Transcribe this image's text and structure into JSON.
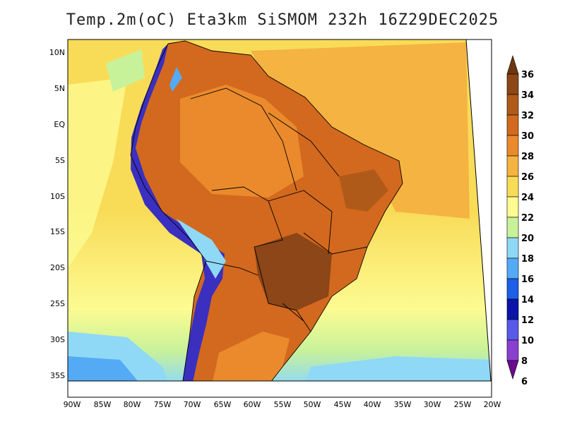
{
  "title": "Temp.2m(oC) Eta3km SiSMOM 232h 16Z29DEC2025",
  "lat_labels": [
    "10N",
    "5N",
    "EQ",
    "5S",
    "10S",
    "15S",
    "20S",
    "25S",
    "30S",
    "35S"
  ],
  "lon_labels": [
    "90W",
    "85W",
    "80W",
    "75W",
    "70W",
    "65W",
    "60W",
    "55W",
    "50W",
    "45W",
    "40W",
    "35W",
    "30W",
    "25W",
    "20W"
  ],
  "colorbar": {
    "labels": [
      "36",
      "34",
      "32",
      "30",
      "28",
      "26",
      "24",
      "22",
      "20",
      "18",
      "16",
      "14",
      "12",
      "10",
      "8",
      "6"
    ],
    "colors": [
      "#6e3613",
      "#8c4617",
      "#b05a1a",
      "#d2691e",
      "#ea8a2c",
      "#f5b342",
      "#f8dc58",
      "#fdfb92",
      "#c8f29a",
      "#8fd8f6",
      "#55aaf5",
      "#1d5fe6",
      "#0a14a8",
      "#5a5ae8",
      "#8a3fcf",
      "#6b0a8e"
    ]
  },
  "colors": {
    "ocean_warm": "#f5b342",
    "ocean_mid": "#f8dc58",
    "ocean_cool": "#fdfb92",
    "ocean_cold": "#8fd8f6",
    "land_hot": "#d2691e",
    "land_hotter": "#8c4617",
    "andes": "#3a2fbf"
  }
}
